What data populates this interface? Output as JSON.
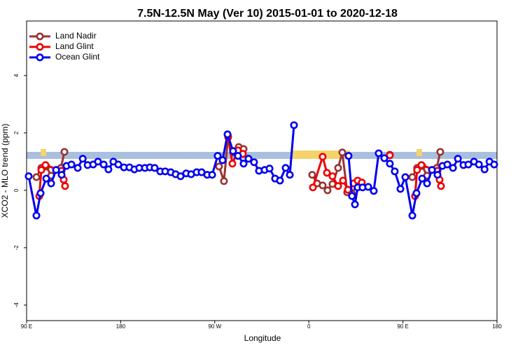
{
  "chart_data": {
    "type": "line",
    "title": "7.5N-12.5N May (Ver 10)   2015-01-01 to 2020-12-18",
    "x_label": "Longitude",
    "y_label": "XCO2 - MLO trend (ppm)",
    "xlim": [
      90,
      540
    ],
    "ylim": [
      -4.54,
      5.9
    ],
    "xticks": [
      {
        "value": 90,
        "label": "90 E"
      },
      180,
      {
        "value": 270,
        "label": "90 W"
      },
      {
        "value": 360,
        "label": "0"
      },
      {
        "value": 450,
        "label": "90 E"
      },
      {
        "value": 540,
        "label": "180"
      }
    ],
    "yticks": [
      -4,
      -2,
      0,
      2,
      4
    ],
    "legend": "top-left",
    "series": [
      {
        "name": "Land Nadir",
        "color": "#993333",
        "x": [
          99.4,
          104.1,
          108.8,
          113.5,
          118.2,
          122.8,
          126.2,
          null,
          274.1,
          278.8,
          282.8,
          287.5,
          292.9,
          297.6,
          null,
          363.2,
          367.9,
          373.2,
          377.9,
          382.6,
          388.0,
          392.0,
          396.7,
          401.3,
          406.1,
          null,
          437.5,
          null,
          459.0,
          463.6,
          468.4,
          473.1,
          477.8,
          482.4,
          485.7
        ],
        "values": [
          0.46,
          0.78,
          0.83,
          0.51,
          0.71,
          0.78,
          1.34,
          null,
          0.83,
          0.32,
          1.88,
          1.32,
          1.51,
          1.44,
          null,
          0.54,
          0.24,
          0.17,
          0.0,
          0.22,
          0.78,
          1.32,
          -0.07,
          -0.12,
          0.22,
          null,
          1.24,
          null,
          0.46,
          0.78,
          0.85,
          0.51,
          0.71,
          0.78,
          1.34
        ]
      },
      {
        "name": "Land Glint",
        "color": "#ee0000",
        "x": [
          102.1,
          104.1,
          108.1,
          123.5,
          125.5,
          126.8,
          null,
          282.8,
          286.9,
          292.2,
          296.9,
          null,
          363.9,
          373.2,
          377.3,
          382.6,
          388.0,
          392.7,
          397.4,
          402.7,
          406.7,
          410.7,
          null,
          437.5,
          null,
          461.6,
          463.6,
          467.7,
          483.1,
          485.1,
          486.4
        ],
        "values": [
          -0.2,
          0.71,
          0.88,
          0.68,
          0.37,
          0.15,
          null,
          1.85,
          0.93,
          1.39,
          1.27,
          null,
          0.1,
          1.17,
          0.61,
          0.49,
          0.15,
          0.34,
          0.02,
          0.24,
          0.34,
          0.27,
          null,
          1.22,
          null,
          -0.2,
          0.71,
          0.88,
          0.68,
          0.37,
          0.15
        ]
      },
      {
        "name": "Ocean Glint",
        "color": "#0000ee",
        "x": [
          92.0,
          99.4,
          103.4,
          108.8,
          113.5,
          118.2,
          123.5,
          128.2,
          132.9,
          138.9,
          143.7,
          148.4,
          153.7,
          158.3,
          163.7,
          168.3,
          173.0,
          177.7,
          183.1,
          188.4,
          193.1,
          197.8,
          203.2,
          207.9,
          212.5,
          217.9,
          222.6,
          227.9,
          232.6,
          237.3,
          242.7,
          247.4,
          252.7,
          257.4,
          262.8,
          267.5,
          272.8,
          277.5,
          282.2,
          287.5,
          292.2,
          297.6,
          302.3,
          307.6,
          312.3,
          317.7,
          322.4,
          327.7,
          332.4,
          337.8,
          341.8,
          345.8,
          null,
          398.0,
          401.3,
          404.1,
          406.7,
          411.4,
          416.8,
          422.1,
          426.8,
          432.2,
          437.5,
          442.2,
          447.6,
          452.3,
          459.0,
          463.0,
          468.4,
          473.1,
          477.8,
          483.1,
          487.8,
          492.5,
          497.9,
          502.6,
          507.9,
          512.6,
          518.0,
          522.7,
          528.1,
          532.8,
          537.3
        ],
        "values": [
          0.49,
          -0.88,
          -0.1,
          0.41,
          0.24,
          0.71,
          0.54,
          0.85,
          0.9,
          0.78,
          1.1,
          0.88,
          0.9,
          1.0,
          0.9,
          0.73,
          1.0,
          0.9,
          0.8,
          0.8,
          0.73,
          0.78,
          0.78,
          0.8,
          0.78,
          0.66,
          0.66,
          0.63,
          0.56,
          0.49,
          0.59,
          0.56,
          0.63,
          0.63,
          0.54,
          0.54,
          1.2,
          1.05,
          1.95,
          1.37,
          1.2,
          0.93,
          1.1,
          0.98,
          0.68,
          0.71,
          0.76,
          0.41,
          0.34,
          0.78,
          0.54,
          2.27,
          null,
          1.2,
          -0.2,
          -0.49,
          0.1,
          0.1,
          0.12,
          -0.02,
          1.29,
          1.12,
          0.93,
          0.66,
          0.05,
          0.46,
          -0.88,
          -0.1,
          0.41,
          0.24,
          0.71,
          0.54,
          0.85,
          0.9,
          0.78,
          1.1,
          0.88,
          0.9,
          1.0,
          0.9,
          0.73,
          1.0,
          0.9
        ]
      }
    ]
  }
}
